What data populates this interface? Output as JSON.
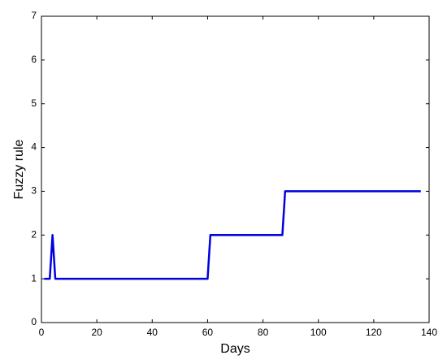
{
  "chart_data": {
    "type": "line",
    "xlabel": "Days",
    "ylabel": "Fuzzy rule",
    "x": [
      1,
      3,
      4,
      5,
      60,
      61,
      87,
      88,
      137
    ],
    "values": [
      1,
      1,
      2,
      1,
      1,
      2,
      2,
      3,
      3
    ],
    "color": "#0000e0",
    "xlim": [
      0,
      140
    ],
    "xticks": [
      0,
      20,
      40,
      60,
      80,
      100,
      120,
      140
    ],
    "ylim": [
      0,
      7
    ],
    "yticks": [
      0,
      1,
      2,
      3,
      4,
      5,
      6,
      7
    ],
    "grid": false
  }
}
